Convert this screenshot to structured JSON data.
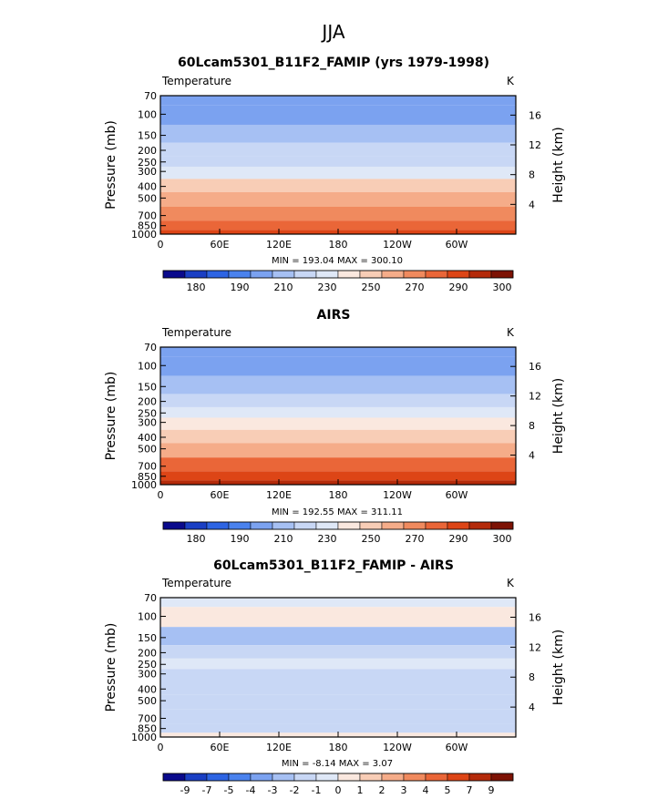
{
  "page": {
    "title": "JJA"
  },
  "palettes": {
    "temperature": [
      "#0a0a8c",
      "#1a3fc4",
      "#2d64e3",
      "#4a82ee",
      "#7ba2f0",
      "#a6c0f3",
      "#c8d7f5",
      "#dfe8f7",
      "#fae8df",
      "#f8cdb6",
      "#f5ac89",
      "#f08a5e",
      "#ea6638",
      "#dd4516",
      "#b42a0a",
      "#7d1204"
    ],
    "difference": [
      "#0a0a8c",
      "#1a3fc4",
      "#2d64e3",
      "#4a82ee",
      "#7ba2f0",
      "#a6c0f3",
      "#c8d7f5",
      "#dfe8f7",
      "#fae8df",
      "#f8cdb6",
      "#f5ac89",
      "#f08a5e",
      "#ea6638",
      "#dd4516",
      "#b42a0a",
      "#7d1204"
    ]
  },
  "chart_data": [
    {
      "type": "heatmap",
      "title": "60Lcam5301_B11F2_FAMIP (yrs 1979-1998)",
      "variable": "Temperature",
      "units": "K",
      "ylabel": "Pressure  (mb)",
      "y2label": "Height  (km)",
      "y_ticks": [
        "70",
        "100",
        "150",
        "200",
        "250",
        "300",
        "400",
        "500",
        "700",
        "850",
        "1000"
      ],
      "y2_ticks": [
        "16",
        "12",
        "8",
        "4"
      ],
      "x_ticks": [
        "0",
        "60E",
        "120E",
        "180",
        "120W",
        "60W"
      ],
      "stats": "MIN = 193.04   MAX = 300.10",
      "colorbar_labels": [
        "180",
        "190",
        "210",
        "230",
        "250",
        "270",
        "290",
        "300"
      ],
      "palette": "temperature",
      "levels_by_pressure": [
        {
          "p": 70,
          "v": 207
        },
        {
          "p": 100,
          "v": 200
        },
        {
          "p": 150,
          "v": 214
        },
        {
          "p": 200,
          "v": 222
        },
        {
          "p": 250,
          "v": 228
        },
        {
          "p": 300,
          "v": 238
        },
        {
          "p": 400,
          "v": 252
        },
        {
          "p": 500,
          "v": 264
        },
        {
          "p": 700,
          "v": 279
        },
        {
          "p": 850,
          "v": 288
        },
        {
          "p": 1000,
          "v": 294
        }
      ]
    },
    {
      "type": "heatmap",
      "title": "AIRS",
      "variable": "Temperature",
      "units": "K",
      "ylabel": "Pressure  (mb)",
      "y2label": "Height  (km)",
      "y_ticks": [
        "70",
        "100",
        "150",
        "200",
        "250",
        "300",
        "400",
        "500",
        "700",
        "850",
        "1000"
      ],
      "y2_ticks": [
        "16",
        "12",
        "8",
        "4"
      ],
      "x_ticks": [
        "0",
        "60E",
        "120E",
        "180",
        "120W",
        "60W"
      ],
      "stats": "MIN = 192.55   MAX = 311.11",
      "colorbar_labels": [
        "180",
        "190",
        "210",
        "230",
        "250",
        "270",
        "290",
        "300"
      ],
      "palette": "temperature",
      "levels_by_pressure": [
        {
          "p": 70,
          "v": 207
        },
        {
          "p": 100,
          "v": 200
        },
        {
          "p": 150,
          "v": 214
        },
        {
          "p": 200,
          "v": 222
        },
        {
          "p": 250,
          "v": 230
        },
        {
          "p": 300,
          "v": 242
        },
        {
          "p": 400,
          "v": 254
        },
        {
          "p": 500,
          "v": 265
        },
        {
          "p": 700,
          "v": 280
        },
        {
          "p": 850,
          "v": 290
        },
        {
          "p": 1000,
          "v": 296
        }
      ]
    },
    {
      "type": "heatmap",
      "title": "60Lcam5301_B11F2_FAMIP - AIRS",
      "variable": "Temperature",
      "units": "K",
      "ylabel": "Pressure  (mb)",
      "y2label": "Height  (km)",
      "y_ticks": [
        "70",
        "100",
        "150",
        "200",
        "250",
        "300",
        "400",
        "500",
        "700",
        "850",
        "1000"
      ],
      "y2_ticks": [
        "16",
        "12",
        "8",
        "4"
      ],
      "x_ticks": [
        "0",
        "60E",
        "120E",
        "180",
        "120W",
        "60W"
      ],
      "stats": "MIN = -8.14   MAX = 3.07",
      "colorbar_labels": [
        "-9",
        "-7",
        "-5",
        "-4",
        "-3",
        "-2",
        "-1",
        "0",
        "1",
        "2",
        "3",
        "4",
        "5",
        "7",
        "9"
      ],
      "palette": "difference",
      "levels_by_pressure": [
        {
          "p": 70,
          "v": -0.5
        },
        {
          "p": 100,
          "v": 0.5
        },
        {
          "p": 150,
          "v": -2.5
        },
        {
          "p": 200,
          "v": -1.5
        },
        {
          "p": 250,
          "v": -0.5
        },
        {
          "p": 300,
          "v": -1.5
        },
        {
          "p": 400,
          "v": -1.5
        },
        {
          "p": 500,
          "v": -1.5
        },
        {
          "p": 700,
          "v": -1.5
        },
        {
          "p": 850,
          "v": -1.5
        },
        {
          "p": 1000,
          "v": 0.5
        }
      ]
    }
  ]
}
